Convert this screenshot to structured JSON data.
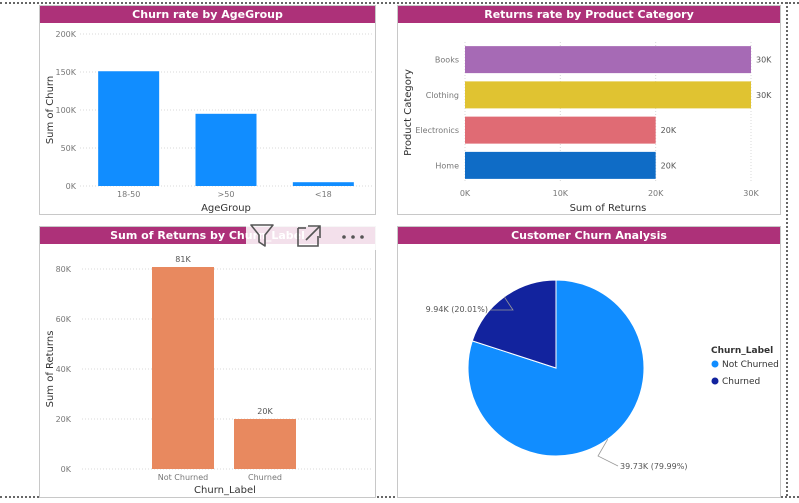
{
  "panels": {
    "p1": {
      "title": "Churn rate by AgeGroup"
    },
    "p2": {
      "title": "Returns rate by Product Category"
    },
    "p3": {
      "title": "Sum of Returns by Churn_Label"
    },
    "p4": {
      "title": "Customer Churn Analysis"
    }
  },
  "colors": {
    "title_bar": "#ad3179",
    "blue": "#118dff",
    "dark_blue": "#12239e",
    "orange": "#e8895f"
  },
  "icons": [
    "filter-icon",
    "focus-mode-icon",
    "more-options-icon"
  ],
  "chart_data": [
    {
      "id": "p1",
      "type": "bar",
      "orientation": "vertical",
      "categories": [
        "18-50",
        ">50",
        "<18"
      ],
      "values": [
        151000,
        95000,
        5000
      ],
      "xlabel": "AgeGroup",
      "ylabel": "Sum of Churn",
      "ylim": [
        0,
        200000
      ],
      "yticks": [
        "0K",
        "50K",
        "100K",
        "150K",
        "200K"
      ],
      "grid": true,
      "color": "#118dff"
    },
    {
      "id": "p2",
      "type": "bar",
      "orientation": "horizontal",
      "categories": [
        "Books",
        "Clothing",
        "Electronics",
        "Home"
      ],
      "values": [
        30000,
        30000,
        20000,
        20000
      ],
      "data_labels": [
        "30K",
        "30K",
        "20K",
        "20K"
      ],
      "colors": [
        "#a66ab5",
        "#e0c331",
        "#e06b74",
        "#0f6cc6"
      ],
      "xlabel": "Sum of Returns",
      "ylabel": "Product Category",
      "xlim": [
        0,
        30000
      ],
      "xticks": [
        "0K",
        "10K",
        "20K",
        "30K"
      ],
      "grid": true
    },
    {
      "id": "p3",
      "type": "bar",
      "orientation": "vertical",
      "categories": [
        "Not Churned",
        "Churned"
      ],
      "values": [
        81000,
        20000
      ],
      "data_labels": [
        "81K",
        "20K"
      ],
      "xlabel": "Churn_Label",
      "ylabel": "Sum of Returns",
      "ylim": [
        0,
        80000
      ],
      "yticks": [
        "0K",
        "20K",
        "40K",
        "60K",
        "80K"
      ],
      "grid": true,
      "color": "#e8895f"
    },
    {
      "id": "p4",
      "type": "pie",
      "slices": [
        {
          "label": "Not Churned",
          "value": 39730,
          "data_label": "39.73K (79.99%)",
          "color": "#118dff"
        },
        {
          "label": "Churned",
          "value": 9940,
          "data_label": "9.94K (20.01%)",
          "color": "#12239e"
        }
      ],
      "legend_title": "Churn_Label",
      "legend_position": "right"
    }
  ]
}
